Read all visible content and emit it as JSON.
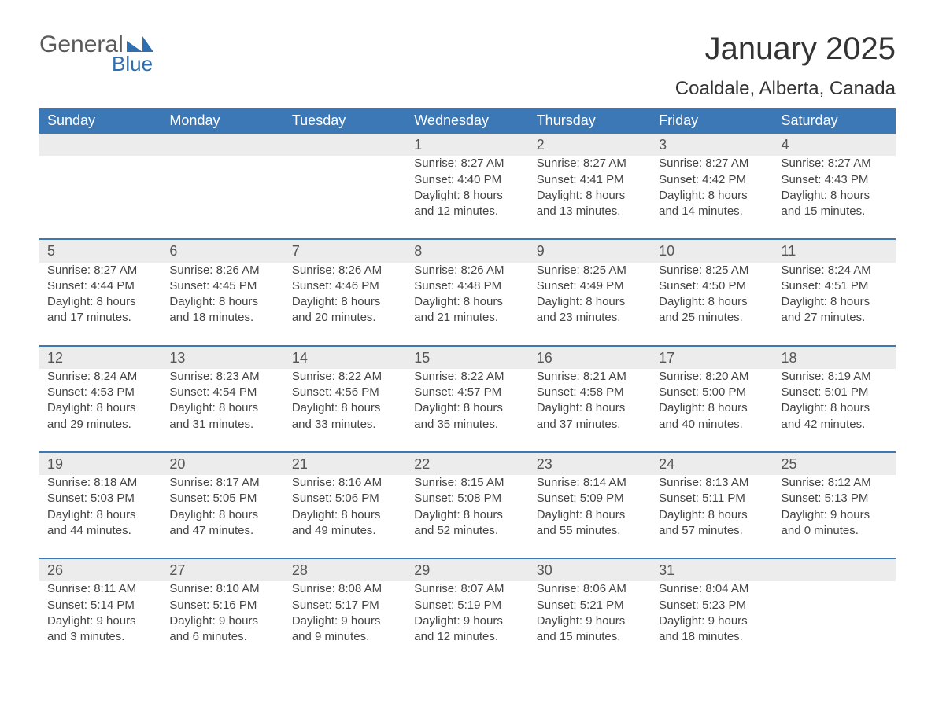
{
  "logo": {
    "text1": "General",
    "text2": "Blue",
    "shape_color": "#2f6fb0"
  },
  "title": "January 2025",
  "location": "Coaldale, Alberta, Canada",
  "header_bg": "#3b78b5",
  "header_text_color": "#ffffff",
  "daynum_bg": "#ececec",
  "row_border_color": "#3b78b5",
  "body_text_color": "#444444",
  "weekdays": [
    "Sunday",
    "Monday",
    "Tuesday",
    "Wednesday",
    "Thursday",
    "Friday",
    "Saturday"
  ],
  "weeks": [
    [
      null,
      null,
      null,
      {
        "n": "1",
        "sr": "8:27 AM",
        "ss": "4:40 PM",
        "dl": "8 hours and 12 minutes."
      },
      {
        "n": "2",
        "sr": "8:27 AM",
        "ss": "4:41 PM",
        "dl": "8 hours and 13 minutes."
      },
      {
        "n": "3",
        "sr": "8:27 AM",
        "ss": "4:42 PM",
        "dl": "8 hours and 14 minutes."
      },
      {
        "n": "4",
        "sr": "8:27 AM",
        "ss": "4:43 PM",
        "dl": "8 hours and 15 minutes."
      }
    ],
    [
      {
        "n": "5",
        "sr": "8:27 AM",
        "ss": "4:44 PM",
        "dl": "8 hours and 17 minutes."
      },
      {
        "n": "6",
        "sr": "8:26 AM",
        "ss": "4:45 PM",
        "dl": "8 hours and 18 minutes."
      },
      {
        "n": "7",
        "sr": "8:26 AM",
        "ss": "4:46 PM",
        "dl": "8 hours and 20 minutes."
      },
      {
        "n": "8",
        "sr": "8:26 AM",
        "ss": "4:48 PM",
        "dl": "8 hours and 21 minutes."
      },
      {
        "n": "9",
        "sr": "8:25 AM",
        "ss": "4:49 PM",
        "dl": "8 hours and 23 minutes."
      },
      {
        "n": "10",
        "sr": "8:25 AM",
        "ss": "4:50 PM",
        "dl": "8 hours and 25 minutes."
      },
      {
        "n": "11",
        "sr": "8:24 AM",
        "ss": "4:51 PM",
        "dl": "8 hours and 27 minutes."
      }
    ],
    [
      {
        "n": "12",
        "sr": "8:24 AM",
        "ss": "4:53 PM",
        "dl": "8 hours and 29 minutes."
      },
      {
        "n": "13",
        "sr": "8:23 AM",
        "ss": "4:54 PM",
        "dl": "8 hours and 31 minutes."
      },
      {
        "n": "14",
        "sr": "8:22 AM",
        "ss": "4:56 PM",
        "dl": "8 hours and 33 minutes."
      },
      {
        "n": "15",
        "sr": "8:22 AM",
        "ss": "4:57 PM",
        "dl": "8 hours and 35 minutes."
      },
      {
        "n": "16",
        "sr": "8:21 AM",
        "ss": "4:58 PM",
        "dl": "8 hours and 37 minutes."
      },
      {
        "n": "17",
        "sr": "8:20 AM",
        "ss": "5:00 PM",
        "dl": "8 hours and 40 minutes."
      },
      {
        "n": "18",
        "sr": "8:19 AM",
        "ss": "5:01 PM",
        "dl": "8 hours and 42 minutes."
      }
    ],
    [
      {
        "n": "19",
        "sr": "8:18 AM",
        "ss": "5:03 PM",
        "dl": "8 hours and 44 minutes."
      },
      {
        "n": "20",
        "sr": "8:17 AM",
        "ss": "5:05 PM",
        "dl": "8 hours and 47 minutes."
      },
      {
        "n": "21",
        "sr": "8:16 AM",
        "ss": "5:06 PM",
        "dl": "8 hours and 49 minutes."
      },
      {
        "n": "22",
        "sr": "8:15 AM",
        "ss": "5:08 PM",
        "dl": "8 hours and 52 minutes."
      },
      {
        "n": "23",
        "sr": "8:14 AM",
        "ss": "5:09 PM",
        "dl": "8 hours and 55 minutes."
      },
      {
        "n": "24",
        "sr": "8:13 AM",
        "ss": "5:11 PM",
        "dl": "8 hours and 57 minutes."
      },
      {
        "n": "25",
        "sr": "8:12 AM",
        "ss": "5:13 PM",
        "dl": "9 hours and 0 minutes."
      }
    ],
    [
      {
        "n": "26",
        "sr": "8:11 AM",
        "ss": "5:14 PM",
        "dl": "9 hours and 3 minutes."
      },
      {
        "n": "27",
        "sr": "8:10 AM",
        "ss": "5:16 PM",
        "dl": "9 hours and 6 minutes."
      },
      {
        "n": "28",
        "sr": "8:08 AM",
        "ss": "5:17 PM",
        "dl": "9 hours and 9 minutes."
      },
      {
        "n": "29",
        "sr": "8:07 AM",
        "ss": "5:19 PM",
        "dl": "9 hours and 12 minutes."
      },
      {
        "n": "30",
        "sr": "8:06 AM",
        "ss": "5:21 PM",
        "dl": "9 hours and 15 minutes."
      },
      {
        "n": "31",
        "sr": "8:04 AM",
        "ss": "5:23 PM",
        "dl": "9 hours and 18 minutes."
      },
      null
    ]
  ],
  "labels": {
    "sunrise": "Sunrise:",
    "sunset": "Sunset:",
    "daylight": "Daylight:"
  }
}
